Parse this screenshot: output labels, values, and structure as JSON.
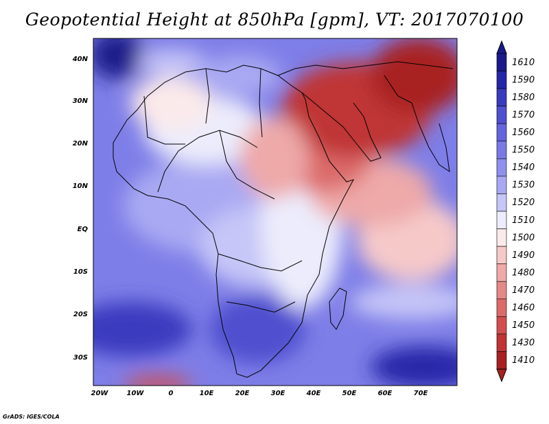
{
  "title": "Geopotential Height at 850hPa [gpm], VT: 2017070100",
  "credit": "GrADS: IGES/COLA",
  "lat_labels": [
    "40N",
    "30N",
    "20N",
    "10N",
    "EQ",
    "10S",
    "20S",
    "30S"
  ],
  "lon_labels": [
    "20W",
    "10W",
    "0",
    "10E",
    "20E",
    "30E",
    "40E",
    "50E",
    "60E",
    "70E"
  ],
  "colorbar": {
    "levels": [
      "1610",
      "1590",
      "1580",
      "1570",
      "1560",
      "1550",
      "1540",
      "1530",
      "1520",
      "1510",
      "1500",
      "1490",
      "1480",
      "1470",
      "1460",
      "1450",
      "1430",
      "1410"
    ],
    "colors": [
      "#1a1a8a",
      "#2626a8",
      "#3a3abf",
      "#4f4fcf",
      "#6464dc",
      "#7a7ae6",
      "#9090ee",
      "#a9a9f3",
      "#c6c6f8",
      "#ececfc",
      "#fbeaea",
      "#f6c9c9",
      "#eea9a9",
      "#e68888",
      "#dc6a6a",
      "#d24e4e",
      "#c03434",
      "#a82020"
    ]
  }
}
